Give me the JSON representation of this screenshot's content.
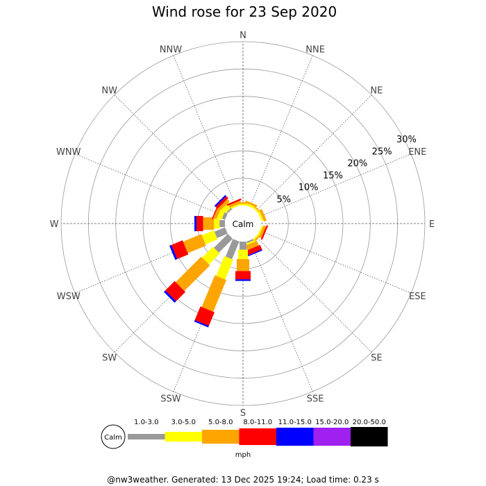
{
  "chart_data": {
    "type": "wind-rose",
    "title": "Wind rose for 23 Sep 2020",
    "calm_label": "Calm",
    "directions": [
      "N",
      "NNE",
      "NE",
      "ENE",
      "E",
      "ESE",
      "SE",
      "SSE",
      "S",
      "SSW",
      "SW",
      "WSW",
      "W",
      "WNW",
      "NW",
      "NNW"
    ],
    "radial_ticks": [
      5,
      10,
      15,
      20,
      25,
      30
    ],
    "radial_tick_labels": [
      "5%",
      "10%",
      "15%",
      "20%",
      "25%",
      "30%"
    ],
    "radial_max": 30,
    "speed_bins": [
      {
        "label": "1.0-3.0",
        "color": "#999999"
      },
      {
        "label": "3.0-5.0",
        "color": "#ffff00"
      },
      {
        "label": "5.0-8.0",
        "color": "#ffa500"
      },
      {
        "label": "8.0-11.0",
        "color": "#ff0000"
      },
      {
        "label": "11.0-15.0",
        "color": "#0000ff"
      },
      {
        "label": "15.0-20.0",
        "color": "#a020f0"
      },
      {
        "label": "20.0-50.0",
        "color": "#000000"
      }
    ],
    "units": "mph",
    "series": [
      {
        "direction": "N",
        "segments": [
          0,
          0.3,
          0.3,
          0,
          0,
          0,
          0
        ]
      },
      {
        "direction": "NNE",
        "segments": [
          0,
          0.4,
          0.4,
          0,
          0,
          0,
          0
        ]
      },
      {
        "direction": "NE",
        "segments": [
          0,
          0.3,
          0.2,
          0,
          0,
          0,
          0
        ]
      },
      {
        "direction": "ENE",
        "segments": [
          0,
          0.4,
          0.5,
          0,
          0,
          0,
          0
        ]
      },
      {
        "direction": "E",
        "segments": [
          0,
          0,
          0,
          0,
          0,
          0,
          0
        ]
      },
      {
        "direction": "ESE",
        "segments": [
          0,
          0.3,
          0.5,
          0.3,
          0,
          0,
          0
        ]
      },
      {
        "direction": "SE",
        "segments": [
          0,
          0.3,
          0.3,
          0,
          0,
          0,
          0
        ]
      },
      {
        "direction": "SSE",
        "segments": [
          0.3,
          0.3,
          0.9,
          0.9,
          0.2,
          0,
          0
        ]
      },
      {
        "direction": "S",
        "segments": [
          1.5,
          1.7,
          2.2,
          1.5,
          0.3,
          0,
          0
        ]
      },
      {
        "direction": "SSW",
        "segments": [
          3.5,
          3.9,
          6.3,
          2.7,
          0.3,
          0,
          0
        ]
      },
      {
        "direction": "SW",
        "segments": [
          3.6,
          2.8,
          6.6,
          2.4,
          0.4,
          0,
          0
        ]
      },
      {
        "direction": "WSW",
        "segments": [
          2.1,
          2.4,
          3.6,
          2.2,
          0.4,
          0,
          0
        ]
      },
      {
        "direction": "W",
        "segments": [
          1.0,
          1.0,
          2.0,
          1.2,
          0.4,
          0,
          0
        ]
      },
      {
        "direction": "WNW",
        "segments": [
          0.6,
          0.9,
          0.6,
          0.2,
          0,
          0,
          0
        ]
      },
      {
        "direction": "NW",
        "segments": [
          0.3,
          1.0,
          0.6,
          0.5,
          0.3,
          0,
          0
        ]
      },
      {
        "direction": "NNW",
        "segments": [
          0,
          0.3,
          0.5,
          0.3,
          0,
          0,
          0
        ]
      }
    ],
    "grid": true
  },
  "footer": "@nw3weather. Generated: 13 Dec 2025 19:24; Load time: 0.23 s"
}
